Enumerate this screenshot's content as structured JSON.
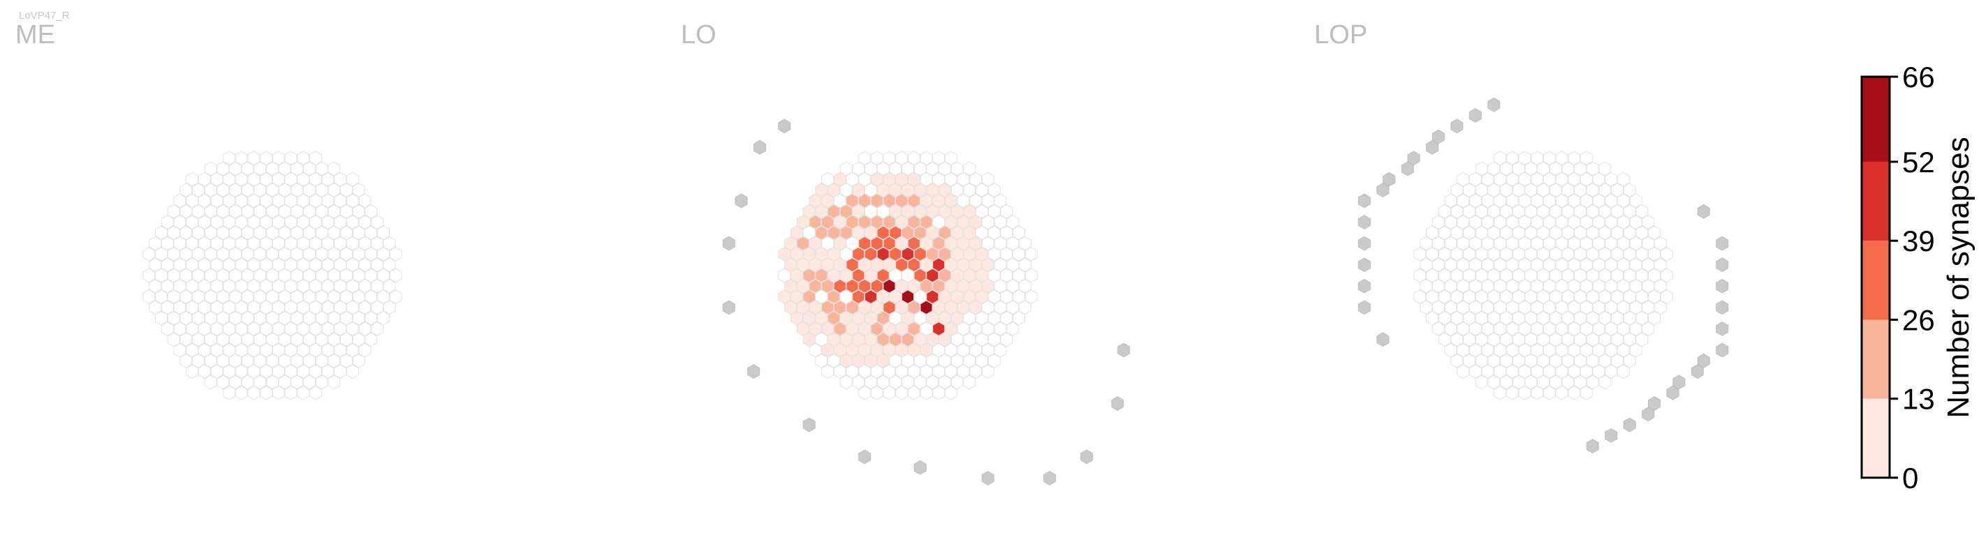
{
  "figure_label": "LoVP47_R",
  "colors": {
    "empty_fill": "#ffffff",
    "empty_stroke": "#e2e2e2",
    "outside_fill": "#cacaca",
    "outside_stroke": "#bdbdbd",
    "label": "#bdbdbd",
    "text": "#000000"
  },
  "chart_data": [
    {
      "type": "heatmap",
      "title": "ME",
      "layout": "hexagonal column grid",
      "hex_radius_columns": 16,
      "data_shown": "none (all columns 0 synapses)",
      "outside_columns": []
    },
    {
      "type": "heatmap",
      "title": "LO",
      "layout": "hexagonal column grid",
      "hex_radius_columns": 16,
      "data_shown": "0–66 synapses per column",
      "hotspot_bins": [
        {
          "column": [
            0,
            3
          ],
          "bin": 5
        },
        {
          "column": [
            -2,
            1
          ],
          "bin": 5
        },
        {
          "column": [
            -1,
            2
          ],
          "bin": 5
        },
        {
          "column": [
            1,
            2
          ],
          "bin": 4
        },
        {
          "column": [
            -1,
            -2
          ],
          "bin": 4
        },
        {
          "column": [
            0,
            5
          ],
          "bin": 4
        },
        {
          "column": [
            2,
            0
          ],
          "bin": 4
        },
        {
          "column": [
            -4,
            2
          ],
          "bin": 4
        },
        {
          "column": [
            3,
            -1
          ],
          "bin": 4
        },
        {
          "column": [
            1,
            -2
          ],
          "bin": 4
        }
      ],
      "outside_columns": [
        [
          -6,
          -12
        ],
        [
          -10,
          -7
        ],
        [
          -13,
          -3
        ],
        [
          -16,
          3
        ],
        [
          -17,
          9
        ],
        [
          -15,
          14
        ],
        [
          -12,
          17
        ],
        [
          -8,
          18
        ],
        [
          -3,
          19
        ],
        [
          2,
          19
        ],
        [
          6,
          17
        ],
        [
          11,
          12
        ],
        [
          14,
          7
        ],
        [
          -3,
          -14
        ]
      ]
    },
    {
      "type": "heatmap",
      "title": "LOP",
      "layout": "hexagonal column grid",
      "hex_radius_columns": 16,
      "data_shown": "none (all columns 0 synapses)",
      "outside_columns": [
        [
          -16,
          3
        ],
        [
          -15,
          1
        ],
        [
          -14,
          -1
        ],
        [
          -13,
          -3
        ],
        [
          -12,
          -5
        ],
        [
          -11,
          -7
        ],
        [
          -9,
          -8
        ],
        [
          -8,
          -9
        ],
        [
          -6,
          -10
        ],
        [
          -5,
          -11
        ],
        [
          -3,
          -12
        ],
        [
          -2,
          -13
        ],
        [
          0,
          -14
        ],
        [
          2,
          -15
        ],
        [
          4,
          -16
        ],
        [
          16,
          -3
        ],
        [
          15,
          -1
        ],
        [
          14,
          1
        ],
        [
          13,
          3
        ],
        [
          12,
          5
        ],
        [
          11,
          7
        ],
        [
          9,
          8
        ],
        [
          8,
          9
        ],
        [
          6,
          10
        ],
        [
          5,
          11
        ],
        [
          3,
          12
        ],
        [
          2,
          13
        ],
        [
          0,
          14
        ],
        [
          -2,
          15
        ],
        [
          -4,
          16
        ],
        [
          -16,
          6
        ],
        [
          16,
          -6
        ]
      ]
    }
  ],
  "colorbar": {
    "label": "Number of synapses",
    "ticks": [
      "0",
      "13",
      "26",
      "39",
      "52",
      "66"
    ],
    "values": [
      0,
      13,
      26,
      39,
      52,
      66
    ],
    "bin_colors": [
      "#fde7df",
      "#f9b49c",
      "#f46b4c",
      "#d9302b",
      "#a50f15"
    ]
  }
}
